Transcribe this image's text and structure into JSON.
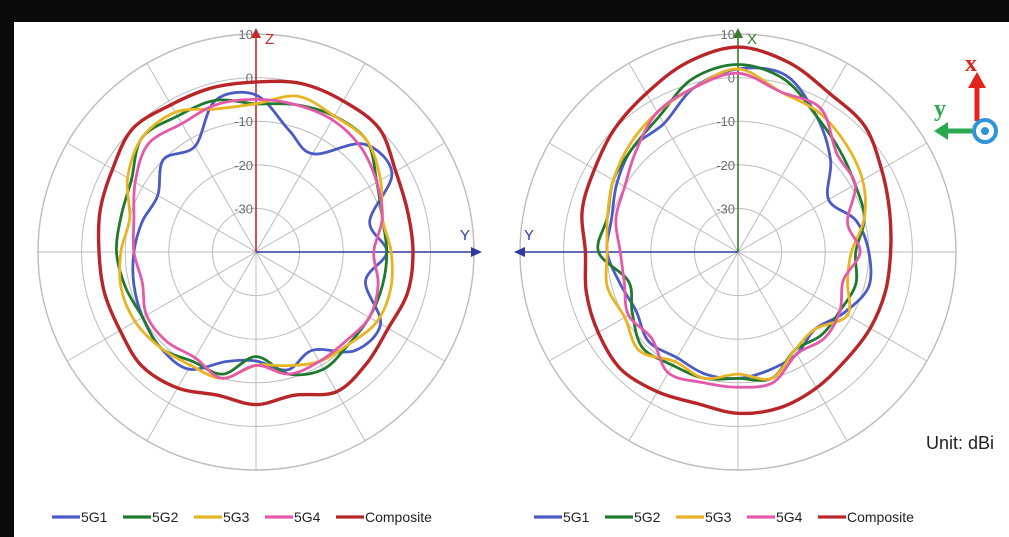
{
  "colors": {
    "5G1": "#4a5bc4",
    "5G2": "#1f7a2e",
    "5G3": "#e8b424",
    "5G4": "#e45aa8",
    "Composite": "#b8262a",
    "grid": "#bcbcbc",
    "tick_text": "#6e6e6e"
  },
  "unit_label": "Unit: dBi",
  "coord_icon": {
    "x_label": "x",
    "y_label": "y",
    "x_color": "#e0241c",
    "y_color": "#2aa852",
    "dot_color": "#2f95d6"
  },
  "chart_data": [
    {
      "type": "polar",
      "rlim": [
        -40,
        10
      ],
      "r_ticks": [
        10,
        0,
        -10,
        -20,
        -30
      ],
      "r_tick_labels": [
        "10",
        "0",
        "-10",
        "-20",
        "-30"
      ],
      "angular_grid_step_deg": 30,
      "axis_labels": {
        "top": "Z",
        "right": "Y"
      },
      "axis_color": "#c42a2a",
      "h_axis_color": "#2d3aa0",
      "legend": [
        "5G1",
        "5G2",
        "5G3",
        "5G4",
        "Composite"
      ],
      "legend_position": "bottom",
      "series": [
        {
          "name": "5G1",
          "gain_dBi": [
            -4,
            -11,
            -14,
            -5,
            -4,
            -13,
            -10,
            -14,
            -7,
            -8,
            -14,
            -12,
            -15,
            -14,
            -9,
            -9,
            -10,
            -11,
            -12,
            -13,
            -14,
            -10,
            -12,
            -4
          ]
        },
        {
          "name": "5G2",
          "gain_dBi": [
            -6,
            -5,
            -4,
            -4,
            -8,
            -10,
            -10,
            -10,
            -10,
            -10,
            -9,
            -11,
            -16,
            -11,
            -11,
            -9,
            -10,
            -9,
            -8,
            -8,
            -7,
            -3,
            -4,
            -4
          ]
        },
        {
          "name": "5G3",
          "gain_dBi": [
            -6,
            -3,
            -4,
            -4,
            -7,
            -10,
            -9,
            -8,
            -8,
            -10,
            -11,
            -13,
            -14,
            -10,
            -10,
            -9,
            -8,
            -8,
            -9,
            -10,
            -6,
            -3,
            -3,
            -6
          ]
        },
        {
          "name": "5G4",
          "gain_dBi": [
            -5,
            -5,
            -5,
            -6,
            -8,
            -10,
            -13,
            -11,
            -10,
            -11,
            -11,
            -11,
            -14,
            -10,
            -12,
            -11,
            -11,
            -13,
            -12,
            -11,
            -8,
            -5,
            -6,
            -5
          ]
        },
        {
          "name": "Composite",
          "gain_dBi": [
            -1,
            0,
            0,
            0,
            -3,
            -4,
            -4,
            -4,
            -5,
            -4,
            -3,
            -6,
            -5,
            -6,
            -4,
            -3,
            -4,
            -4,
            -4,
            -3,
            -2,
            0,
            -1,
            -1
          ]
        }
      ]
    },
    {
      "type": "polar",
      "rlim": [
        -40,
        10
      ],
      "r_ticks": [
        10,
        0,
        -10,
        -20,
        -30
      ],
      "r_tick_labels": [
        "10",
        "0",
        "-10",
        "-20",
        "-30"
      ],
      "angular_grid_step_deg": 30,
      "axis_labels": {
        "top": "X",
        "left": "Y"
      },
      "axis_color": "#3a7a2a",
      "h_axis_color": "#2d3aa0",
      "legend": [
        "5G1",
        "5G2",
        "5G3",
        "5G4",
        "Composite"
      ],
      "legend_position": "bottom",
      "series": [
        {
          "name": "5G1",
          "gain_dBi": [
            2,
            2,
            -4,
            -10,
            -16,
            -12,
            -10,
            -9,
            -12,
            -15,
            -13,
            -12,
            -11,
            -11,
            -12,
            -11,
            -13,
            -12,
            -10,
            -10,
            -8,
            -6,
            -6,
            -1
          ]
        },
        {
          "name": "5G2",
          "gain_dBi": [
            3,
            1,
            -4,
            -7,
            -9,
            -10,
            -13,
            -12,
            -13,
            -13,
            -14,
            -10,
            -11,
            -10,
            -10,
            -9,
            -12,
            -14,
            -8,
            -9,
            -7,
            -6,
            -4,
            1
          ]
        },
        {
          "name": "5G3",
          "gain_dBi": [
            2,
            -2,
            -3,
            -5,
            -7,
            -10,
            -14,
            -14,
            -11,
            -15,
            -14,
            -10,
            -12,
            -10,
            -11,
            -8,
            -10,
            -9,
            -10,
            -9,
            -7,
            -5,
            -3,
            -1
          ]
        },
        {
          "name": "5G4",
          "gain_dBi": [
            1,
            -2,
            -2,
            -8,
            -9,
            -14,
            -12,
            -15,
            -13,
            -12,
            -13,
            -9,
            -9,
            -9,
            -8,
            -12,
            -11,
            -13,
            -13,
            -11,
            -10,
            -7,
            -3,
            -1
          ]
        },
        {
          "name": "Composite",
          "gain_dBi": [
            7,
            5,
            2,
            1,
            -2,
            -4,
            -5,
            -5,
            -5,
            -5,
            -4,
            -3,
            -3,
            -4,
            -3,
            -2,
            -3,
            -4,
            -5,
            -3,
            -2,
            0,
            2,
            5
          ]
        }
      ]
    }
  ]
}
